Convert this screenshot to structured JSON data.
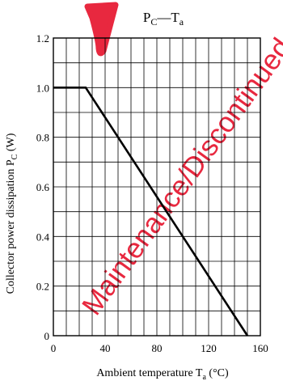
{
  "watermark": {
    "text": "Maintenance/Discontinued",
    "color": "#e8283f"
  },
  "chart_data": {
    "type": "line",
    "title": {
      "main": "P",
      "main_sub": "C",
      "dash": "—",
      "var": "T",
      "var_sub": "a"
    },
    "ylabel": {
      "text": "Collector power dissipation  P",
      "sub": "C",
      "unit": " (W)"
    },
    "xlabel": {
      "text": "Ambient temperature  T",
      "sub": "a",
      "unit": "  (°C)"
    },
    "xlim": [
      0,
      160
    ],
    "ylim": [
      0,
      1.2
    ],
    "x_ticks": [
      0,
      40,
      80,
      120,
      160
    ],
    "x_tick_labels": [
      "0",
      "40",
      "80",
      "120",
      "160"
    ],
    "y_ticks": [
      0,
      0.2,
      0.4,
      0.6,
      0.8,
      1.0,
      1.2
    ],
    "y_tick_labels": [
      "0",
      "0.2",
      "0.4",
      "0.6",
      "0.8",
      "1.0",
      "1.2"
    ],
    "grid": true,
    "grid_x_step": 10,
    "grid_y_step": 0.1,
    "series": [
      {
        "x": [
          0,
          25,
          150
        ],
        "y": [
          1.0,
          1.0,
          0
        ],
        "color": "#000000"
      }
    ]
  }
}
